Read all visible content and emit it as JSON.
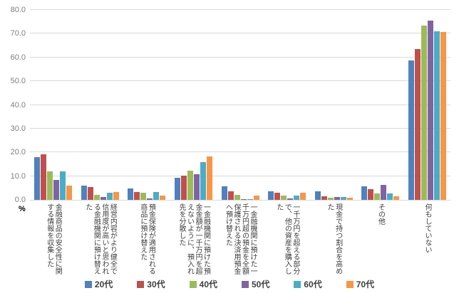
{
  "chart_data": {
    "type": "bar",
    "title": "",
    "unit_label": "%",
    "ylim": [
      0,
      80
    ],
    "ytick_step": 10,
    "ytick_labels": [
      "0.0",
      "10.0",
      "20.0",
      "30.0",
      "40.0",
      "50.0",
      "60.0",
      "70.0",
      "80.0"
    ],
    "grid": true,
    "legend_position": "bottom",
    "categories": [
      "金融商品の安全性に関する情報を収集した",
      "経営内容がより健全で信用度が高いと思われる金融機関に預け替えた",
      "預金保険が適用される商品に預け替えた",
      "一金融機関に預けた預金金額が一千万円を超えないように、預入れ先を分散した",
      "一金融機関に預けた一千万円超の預金を全額保護される決済用預金へ預け替えた",
      "一千万円を超える部分で、他の資産を購入した",
      "現金で持つ割合を高めた",
      "その他",
      "何もしていない"
    ],
    "series": [
      {
        "name": "20代",
        "color": "#4F81BD",
        "values": [
          17.9,
          6.0,
          4.8,
          9.3,
          5.8,
          3.5,
          3.6,
          5.8,
          58.8
        ]
      },
      {
        "name": "30代",
        "color": "#C0504D",
        "values": [
          19.3,
          5.5,
          3.3,
          10.3,
          3.7,
          3.0,
          1.6,
          4.6,
          63.5
        ]
      },
      {
        "name": "40代",
        "color": "#9BBB59",
        "values": [
          12.1,
          2.1,
          3.0,
          12.3,
          2.0,
          1.7,
          0.9,
          2.8,
          73.3
        ]
      },
      {
        "name": "50代",
        "color": "#8064A2",
        "values": [
          8.3,
          1.2,
          0.6,
          10.8,
          0.2,
          0.7,
          1.3,
          6.4,
          75.5
        ]
      },
      {
        "name": "60代",
        "color": "#4BACC6",
        "values": [
          12.1,
          3.0,
          3.3,
          16.0,
          0.2,
          1.7,
          1.2,
          2.7,
          71.0
        ]
      },
      {
        "name": "70代",
        "color": "#F79646",
        "values": [
          6.1,
          3.4,
          1.8,
          18.3,
          1.8,
          2.9,
          1.0,
          1.5,
          70.8
        ]
      }
    ],
    "colors": {
      "gridline": "#D9D9D9",
      "axis_text": "#7F7F7F",
      "category_text": "#404040"
    }
  }
}
